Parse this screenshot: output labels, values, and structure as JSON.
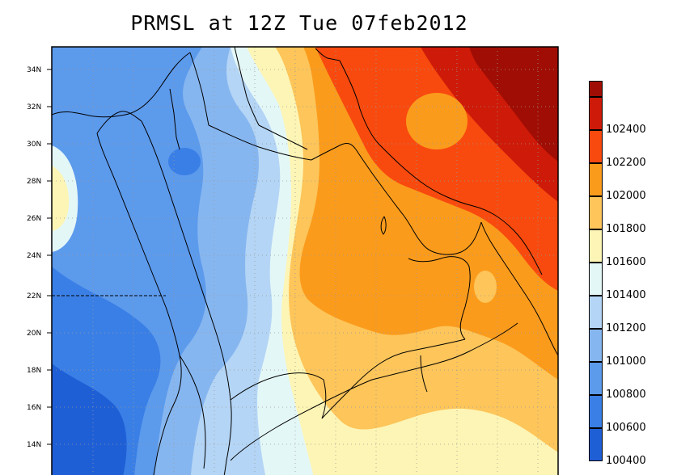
{
  "title": "PRMSL at 12Z Tue 07feb2012",
  "latitude_labels": [
    "34N",
    "32N",
    "30N",
    "28N",
    "26N",
    "24N",
    "22N",
    "20N",
    "18N",
    "16N",
    "14N"
  ],
  "legend": {
    "bands": [
      {
        "color": "#1f5fd6",
        "label": "100400"
      },
      {
        "color": "#3a7fe6",
        "label": "100600"
      },
      {
        "color": "#5c9aec",
        "label": "100800"
      },
      {
        "color": "#86b6f0",
        "label": "101000"
      },
      {
        "color": "#b4d5f5",
        "label": "101200"
      },
      {
        "color": "#e4f7f7",
        "label": "101400"
      },
      {
        "color": "#fdf5b5",
        "label": "101600"
      },
      {
        "color": "#fdc55a",
        "label": "101800"
      },
      {
        "color": "#fb9b1c",
        "label": "102000"
      },
      {
        "color": "#f84a0e",
        "label": "102200"
      },
      {
        "color": "#ce1a08",
        "label": "102400"
      },
      {
        "color": "#a00d04",
        "label": ""
      }
    ]
  },
  "colors": {
    "deep_blue": "#1f5fd6",
    "blue": "#3a7fe6",
    "mid_blue": "#5c9aec",
    "light_blue": "#86b6f0",
    "pale_blue": "#b4d5f5",
    "cyan_white": "#e4f7f7",
    "pale_yellow": "#fdf5b5",
    "light_orange": "#fdc55a",
    "orange": "#fb9b1c",
    "red_orange": "#f84a0e",
    "red": "#ce1a08",
    "dark_red": "#a00d04"
  }
}
